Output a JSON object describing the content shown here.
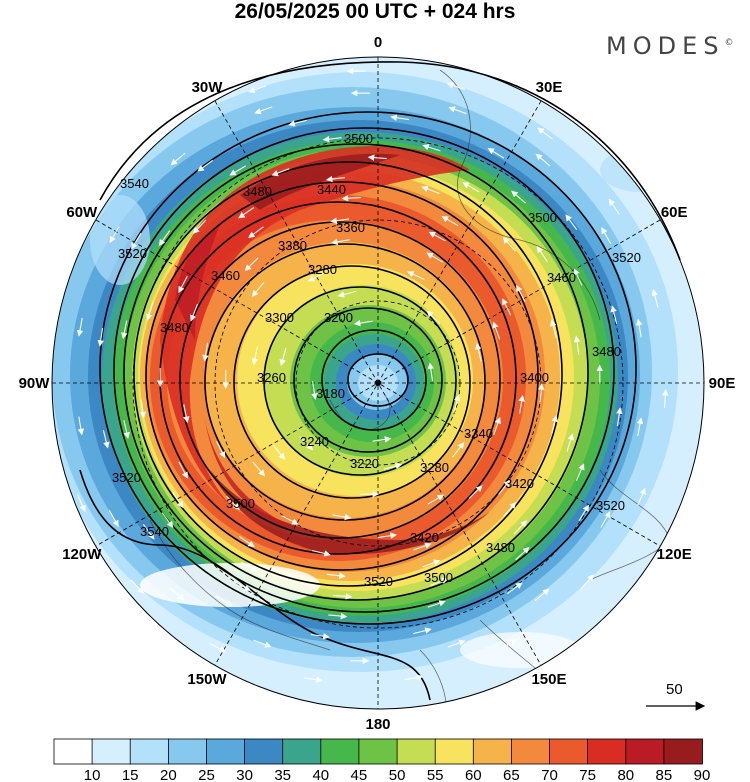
{
  "title": "26/05/2025  00 UTC  + 024 hrs",
  "brand": "MODES",
  "brand_mark": "©",
  "meridian_labels": [
    {
      "text": "0",
      "lon": 0
    },
    {
      "text": "30E",
      "lon": 30
    },
    {
      "text": "60E",
      "lon": 60
    },
    {
      "text": "90E",
      "lon": 90
    },
    {
      "text": "120E",
      "lon": 120
    },
    {
      "text": "150E",
      "lon": 150
    },
    {
      "text": "180",
      "lon": 180
    },
    {
      "text": "150W",
      "lon": -150
    },
    {
      "text": "120W",
      "lon": -120
    },
    {
      "text": "90W",
      "lon": -90
    },
    {
      "text": "60W",
      "lon": -60
    },
    {
      "text": "30W",
      "lon": -30
    }
  ],
  "vector_reference": "50",
  "colorbar": {
    "ticks": [
      "10",
      "15",
      "20",
      "25",
      "30",
      "35",
      "40",
      "45",
      "50",
      "55",
      "60",
      "65",
      "70",
      "75",
      "80",
      "85",
      "90"
    ],
    "colors": [
      "#ffffff",
      "#d6efff",
      "#b3e0fb",
      "#87c9ee",
      "#5aa8dc",
      "#3c88c4",
      "#3aa58c",
      "#45b74b",
      "#6ec245",
      "#c4dd52",
      "#f7e35e",
      "#f6b34a",
      "#f2893c",
      "#ea5a2c",
      "#d92d24",
      "#bb1b25",
      "#981b1e"
    ]
  },
  "contour_labels": [
    "3180",
    "3200",
    "3220",
    "3240",
    "3260",
    "3280",
    "3300",
    "3340",
    "3360",
    "3380",
    "3400",
    "3420",
    "3440",
    "3460",
    "3480",
    "3500",
    "3520",
    "3540"
  ]
}
